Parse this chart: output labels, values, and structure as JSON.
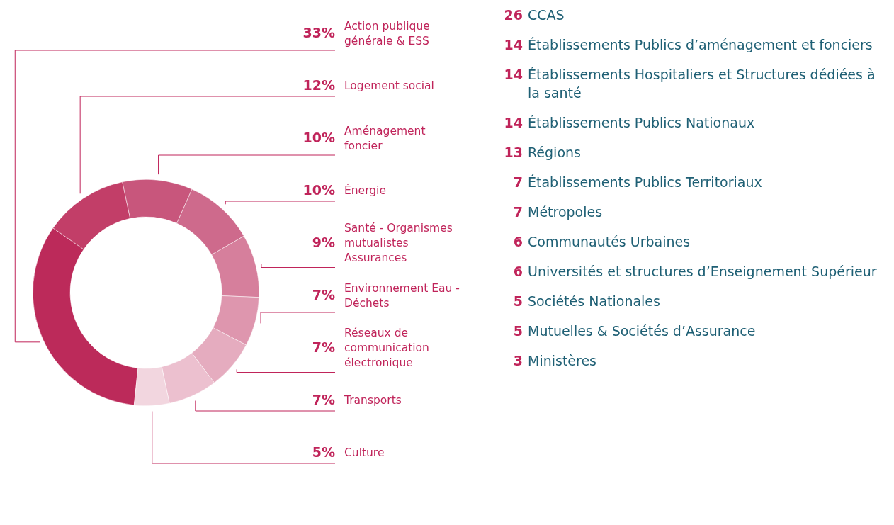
{
  "chart_data": [
    {
      "type": "donut",
      "categories": [
        "Action publique générale & ESS",
        "Logement social",
        "Aménagement foncier",
        "Énergie",
        "Santé - Organismes mutualistes Assurances",
        "Environnement Eau - Déchets",
        "Réseaux de communication électronique",
        "Transports",
        "Culture"
      ],
      "values": [
        33,
        12,
        10,
        10,
        9,
        7,
        7,
        7,
        5
      ],
      "colors": [
        "#bc2a5a",
        "#c23e68",
        "#c8567c",
        "#ce6a8c",
        "#d67f9c",
        "#de96ae",
        "#e5acbf",
        "#ecc0cf",
        "#f2d6df"
      ],
      "value_labels": [
        "33%",
        "12%",
        "10%",
        "10%",
        "9%",
        "7%",
        "7%",
        "7%",
        "5%"
      ]
    },
    {
      "type": "other",
      "categories": [
        "CCAS",
        "Établissements Publics d’aménagement et fonciers",
        "Établissements Hospitaliers et Structures dédiées à la santé",
        "Établissements Publics Nationaux",
        "Régions",
        "Établissements Publics Territoriaux",
        "Métropoles",
        "Communautés Urbaines",
        "Universités et structures d’Enseignement Supérieur",
        "Sociétés Nationales",
        "Mutuelles & Sociétés d’Assurance",
        "Ministères"
      ],
      "values": [
        26,
        14,
        14,
        14,
        13,
        7,
        7,
        6,
        6,
        5,
        5,
        3
      ],
      "data_labels": true
    }
  ]
}
